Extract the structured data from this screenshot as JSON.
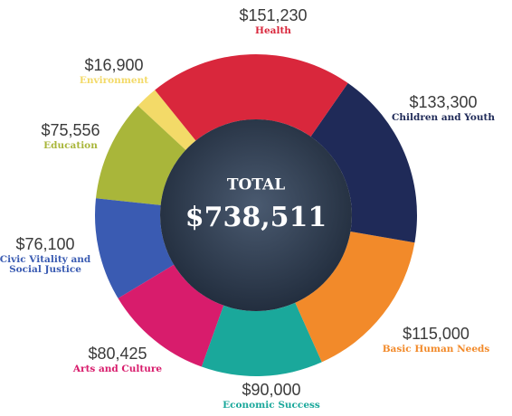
{
  "chart_data": {
    "type": "pie",
    "center_title": "TOTAL",
    "total": {
      "value": 738511,
      "label": "$738,511"
    },
    "categories": [
      "Health",
      "Children and Youth",
      "Basic Human Needs",
      "Economic Success",
      "Arts and Culture",
      "Civic Vitality and Social Justice",
      "Education",
      "Environment"
    ],
    "values": [
      151230,
      133300,
      115000,
      90000,
      80425,
      76100,
      75556,
      16900
    ],
    "value_labels": [
      "$151,230",
      "$133,300",
      "$115,000",
      "$90,000",
      "$80,425",
      "$76,100",
      "$75,556",
      "$16,900"
    ],
    "colors": [
      "#d9273c",
      "#1f2a58",
      "#f28a2a",
      "#1aa89b",
      "#d81c6c",
      "#3a5bb2",
      "#a9b63a",
      "#f3da68"
    ]
  }
}
